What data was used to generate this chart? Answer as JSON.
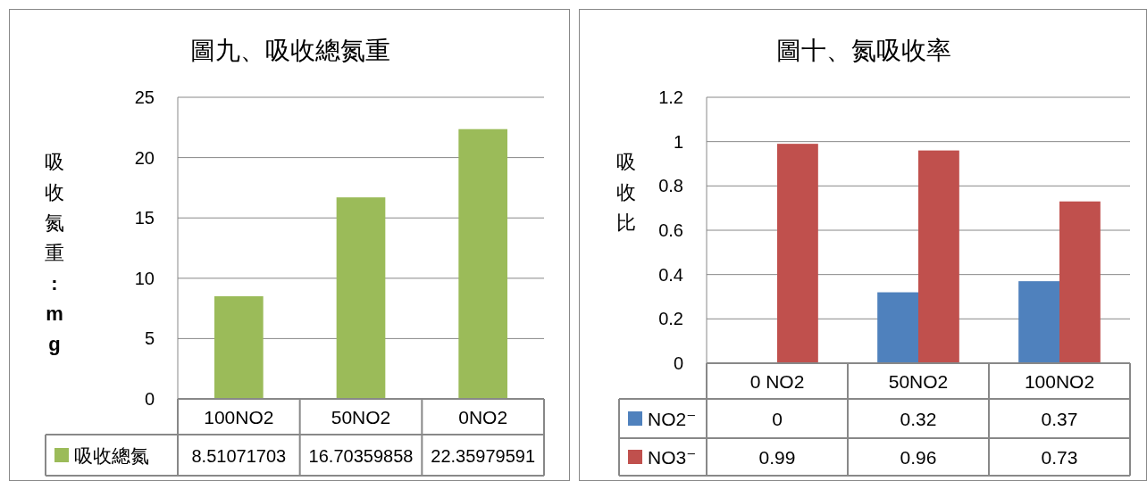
{
  "chart_data": [
    {
      "type": "bar",
      "title": "圖九、吸收總氮重",
      "ylabel": "吸收氮重:mg",
      "categories": [
        "100NO2",
        "50NO2",
        "0NO2"
      ],
      "series": [
        {
          "name": "吸收總氮",
          "color": "#9bbb59",
          "values": [
            8.51071703,
            16.70359858,
            22.35979591
          ]
        }
      ],
      "ylim": [
        0,
        25
      ],
      "yticks": [
        0,
        5,
        10,
        15,
        20,
        25
      ],
      "grid": "y",
      "legend": "bottom",
      "data_labels": true
    },
    {
      "type": "bar",
      "title": "圖十、氮吸收率",
      "ylabel": "吸收比",
      "categories": [
        "0 NO2",
        "50NO2",
        "100NO2"
      ],
      "series": [
        {
          "name": "NO2⁻",
          "color": "#4f81bd",
          "values": [
            0,
            0.32,
            0.37
          ]
        },
        {
          "name": "NO3⁻",
          "color": "#c0504d",
          "values": [
            0.99,
            0.96,
            0.73
          ]
        }
      ],
      "ylim": [
        0,
        1.2
      ],
      "yticks": [
        0,
        0.2,
        0.4,
        0.6,
        0.8,
        1,
        1.2
      ],
      "grid": "y",
      "legend": "bottom",
      "data_labels": true
    }
  ]
}
